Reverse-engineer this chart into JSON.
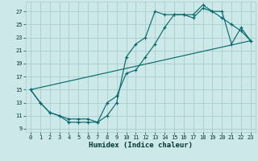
{
  "xlabel": "Humidex (Indice chaleur)",
  "bg_color": "#cce8e8",
  "grid_color": "#aacccc",
  "line_color": "#006666",
  "xlim": [
    -0.5,
    23.5
  ],
  "ylim": [
    8.5,
    28.5
  ],
  "xticks": [
    0,
    1,
    2,
    3,
    4,
    5,
    6,
    7,
    8,
    9,
    10,
    11,
    12,
    13,
    14,
    15,
    16,
    17,
    18,
    19,
    20,
    21,
    22,
    23
  ],
  "yticks": [
    9,
    11,
    13,
    15,
    17,
    19,
    21,
    23,
    25,
    27
  ],
  "curve1_x": [
    0,
    1,
    2,
    3,
    4,
    5,
    6,
    7,
    8,
    9,
    10,
    11,
    12,
    13,
    14,
    15,
    16,
    17,
    18,
    19,
    20,
    21,
    22,
    23
  ],
  "curve1_y": [
    15,
    13,
    11.5,
    11,
    10,
    10,
    10,
    10,
    11,
    13,
    20,
    22,
    23,
    27,
    26.5,
    26.5,
    26.5,
    26,
    27.5,
    27,
    26,
    25,
    24,
    22.5
  ],
  "curve2_x": [
    0,
    1,
    2,
    3,
    4,
    5,
    6,
    7,
    8,
    9,
    10,
    11,
    12,
    13,
    14,
    15,
    16,
    17,
    18,
    19,
    20,
    21,
    22,
    23
  ],
  "curve2_y": [
    15,
    13,
    11.5,
    11,
    10.5,
    10.5,
    10.5,
    10,
    13,
    14,
    17.5,
    18,
    20,
    22,
    24.5,
    26.5,
    26.5,
    26.5,
    28,
    27,
    27,
    22,
    24.5,
    22.5
  ],
  "line3_x": [
    0,
    23
  ],
  "line3_y": [
    15,
    22.5
  ]
}
